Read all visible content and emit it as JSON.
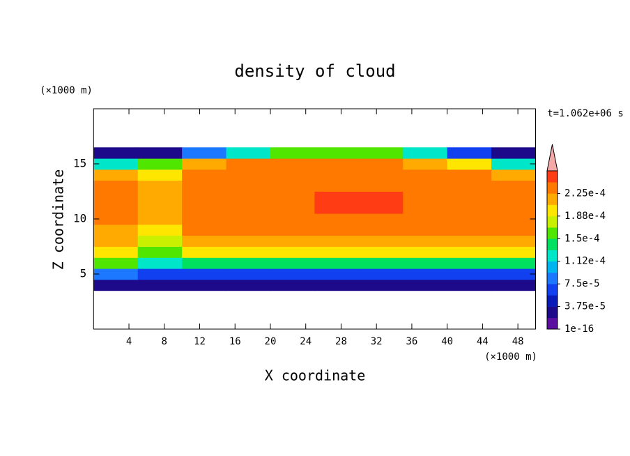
{
  "chart_data": {
    "type": "contour",
    "title": "density of cloud",
    "x_label": "X coordinate",
    "y_label": "Z coordinate",
    "x_unit": "(×1000 m)",
    "y_unit": "(×1000 m)",
    "annotation": "t=1.062e+06 s",
    "xlim": [
      0,
      50
    ],
    "ylim": [
      0,
      20
    ],
    "xticks": [
      4,
      8,
      12,
      16,
      20,
      24,
      28,
      32,
      36,
      40,
      44,
      48
    ],
    "yticks": [
      5,
      10,
      15
    ],
    "x": [
      2.5,
      7.5,
      12.5,
      17.5,
      22.5,
      27.5,
      32.5,
      37.5,
      42.5,
      47.5
    ],
    "z": [
      4,
      5,
      6,
      7,
      8,
      9,
      10,
      11,
      12,
      13,
      14,
      15,
      16
    ],
    "values": [
      [
        3e-05,
        3e-05,
        2e-05,
        2e-05,
        2e-05,
        2e-05,
        2e-05,
        2e-05,
        2e-05,
        2e-05
      ],
      [
        8e-05,
        6e-05,
        6e-05,
        7e-05,
        7e-05,
        7e-05,
        7e-05,
        7e-05,
        7e-05,
        7e-05
      ],
      [
        0.00015,
        0.00012,
        0.00014,
        0.00014,
        0.00014,
        0.00014,
        0.00014,
        0.00014,
        0.00014,
        0.00014
      ],
      [
        0.00019,
        0.00016,
        0.00019,
        0.00019,
        0.00019,
        0.00019,
        0.00019,
        0.00019,
        0.00019,
        0.00019
      ],
      [
        0.00021,
        0.00018,
        0.00022,
        0.00022,
        0.00022,
        0.00022,
        0.00022,
        0.00022,
        0.00022,
        0.00022
      ],
      [
        0.00022,
        0.0002,
        0.00023,
        0.00023,
        0.00023,
        0.00023,
        0.00023,
        0.00023,
        0.00023,
        0.00023
      ],
      [
        0.00024,
        0.00022,
        0.00024,
        0.00024,
        0.00024,
        0.00024,
        0.00024,
        0.00024,
        0.00024,
        0.00024
      ],
      [
        0.00024,
        0.00022,
        0.00024,
        0.00024,
        0.00024,
        0.00025,
        0.00025,
        0.00024,
        0.00024,
        0.00024
      ],
      [
        0.00024,
        0.00022,
        0.00024,
        0.00024,
        0.00024,
        0.00025,
        0.00025,
        0.00024,
        0.00024,
        0.00024
      ],
      [
        0.00023,
        0.00021,
        0.00024,
        0.00024,
        0.00024,
        0.00024,
        0.00024,
        0.00024,
        0.00024,
        0.00023
      ],
      [
        0.00021,
        0.0002,
        0.00024,
        0.00024,
        0.00024,
        0.00024,
        0.00024,
        0.00024,
        0.00023,
        0.00022
      ],
      [
        0.00012,
        0.00015,
        0.00022,
        0.00023,
        0.00023,
        0.00023,
        0.00023,
        0.00022,
        0.0002,
        0.00012
      ],
      [
        2e-05,
        3e-05,
        8e-05,
        0.00012,
        0.00015,
        0.00016,
        0.00016,
        0.00013,
        6e-05,
        2e-05
      ]
    ],
    "levels": [
      1e-16,
      1.875e-05,
      3.75e-05,
      5.625e-05,
      7.5e-05,
      9.375e-05,
      0.0001125,
      0.00013125,
      0.00015,
      0.00016875,
      0.0001875,
      0.00020625,
      0.000225,
      0.00024375,
      0.0002625
    ],
    "colors": [
      "#5a0fa0",
      "#1c0a8a",
      "#0a1ab8",
      "#1040f0",
      "#1c78ff",
      "#00b4f0",
      "#00e6c8",
      "#00e060",
      "#50e600",
      "#c8f000",
      "#ffe600",
      "#ffaa00",
      "#ff7800",
      "#ff3c14"
    ],
    "over_color": "#f5a8a8",
    "colorbar_ticks": [
      {
        "value": 1e-16,
        "label": "1e-16"
      },
      {
        "value": 3.75e-05,
        "label": "3.75e-5"
      },
      {
        "value": 7.5e-05,
        "label": "7.5e-5"
      },
      {
        "value": 0.0001125,
        "label": "1.12e-4"
      },
      {
        "value": 0.00015,
        "label": "1.5e-4"
      },
      {
        "value": 0.0001875,
        "label": "1.88e-4"
      },
      {
        "value": 0.000225,
        "label": "2.25e-4"
      }
    ]
  }
}
